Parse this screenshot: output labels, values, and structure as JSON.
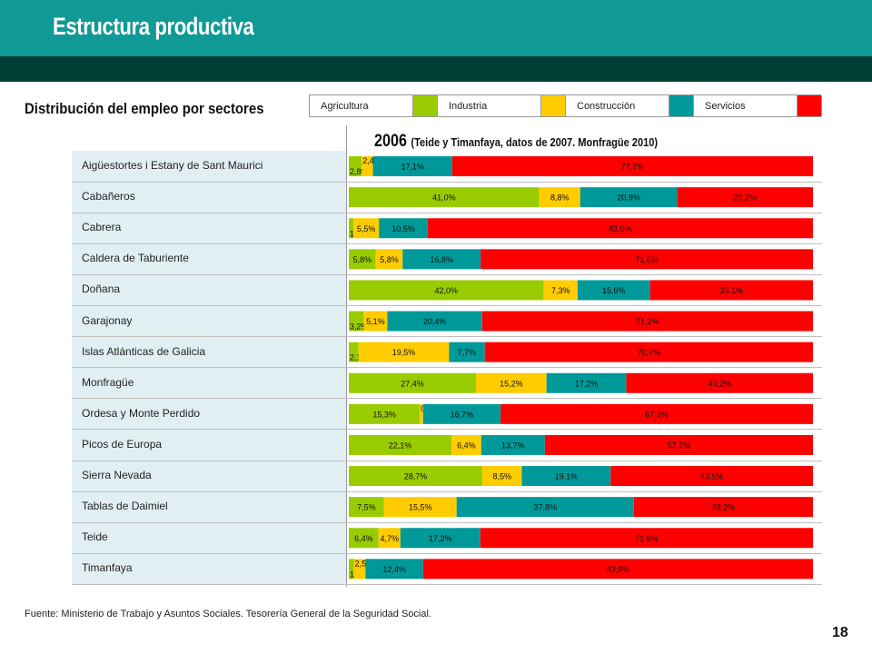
{
  "header": {
    "title": "Estructura productiva"
  },
  "subtitle": "Distribución del empleo por sectores",
  "legend": [
    {
      "label": "Agricultura",
      "color": "#99cc00"
    },
    {
      "label": "Industria",
      "color": "#ffcc00"
    },
    {
      "label": "Construcción",
      "color": "#009999"
    },
    {
      "label": "Servicios",
      "color": "#ff0000"
    }
  ],
  "chart_data": {
    "type": "bar",
    "orientation": "horizontal",
    "stacked": true,
    "title": "2006",
    "title_note": "(Teide  y Timanfaya, datos de 2007. Monfragüe 2010)",
    "categories": [
      "Aigüestortes i Estany de Sant Maurici",
      "Cabañeros",
      "Cabrera",
      "Caldera de Taburiente",
      "Doñana",
      "Garajonay",
      "Islas Atlánticas de Galicia",
      "Monfragüe",
      "Ordesa y Monte Perdido",
      "Picos de Europa",
      "Sierra Nevada",
      "Tablas de Daimiel",
      "Teide",
      "Timanfaya"
    ],
    "series": [
      {
        "name": "Agricultura",
        "color": "#99cc00",
        "values": [
          2.8,
          41.0,
          1.0,
          5.8,
          42.0,
          3.2,
          2.1,
          27.4,
          15.3,
          22.1,
          28.7,
          7.5,
          6.4,
          1.1
        ],
        "labels": [
          "2,8%",
          "41,0%",
          "1,0%",
          "5,8%",
          "42,0%",
          "3,2%",
          "2,1%",
          "27,4%",
          "15,3%",
          "22,1%",
          "28,7%",
          "7,5%",
          "6,4%",
          "1,1%"
        ]
      },
      {
        "name": "Industria",
        "color": "#ffcc00",
        "values": [
          2.4,
          8.8,
          5.5,
          5.8,
          7.3,
          5.1,
          19.5,
          15.2,
          0.7,
          6.4,
          8.5,
          15.5,
          4.7,
          2.5
        ],
        "labels": [
          "2,4%",
          "8,8%",
          "5,5%",
          "5,8%",
          "7,3%",
          "5,1%",
          "19,5%",
          "15,2%",
          "0,7%",
          "6,4%",
          "8,5%",
          "15,5%",
          "4,7%",
          "2,5%"
        ]
      },
      {
        "name": "Construcción",
        "color": "#009999",
        "values": [
          17.1,
          20.9,
          10.5,
          16.8,
          15.6,
          20.4,
          7.7,
          17.2,
          16.7,
          13.7,
          19.1,
          37.8,
          17.2,
          12.4
        ],
        "labels": [
          "17,1%",
          "20,9%",
          "10,5%",
          "16,8%",
          "15,6%",
          "20,4%",
          "7,7%",
          "17,2%",
          "16,7%",
          "13,7%",
          "19,1%",
          "37,8%",
          "17,2%",
          "12,4%"
        ]
      },
      {
        "name": "Servicios",
        "color": "#ff0000",
        "values": [
          77.7,
          29.2,
          83.0,
          71.6,
          35.1,
          71.2,
          70.7,
          40.2,
          67.3,
          57.7,
          43.5,
          38.2,
          71.6,
          83.9
        ],
        "labels": [
          "77,7%",
          "29,2%",
          "83,0%",
          "71,6%",
          "35,1%",
          "71,2%",
          "70,7%",
          "40,2%",
          "67,3%",
          "57,7%",
          "43,5%",
          "38,2%",
          "71,6%",
          "83,9%"
        ]
      }
    ]
  },
  "footnote": "Fuente: Ministerio de Trabajo y Asuntos Sociales. Tesorería General de la Seguridad Social.",
  "page_number": "18"
}
